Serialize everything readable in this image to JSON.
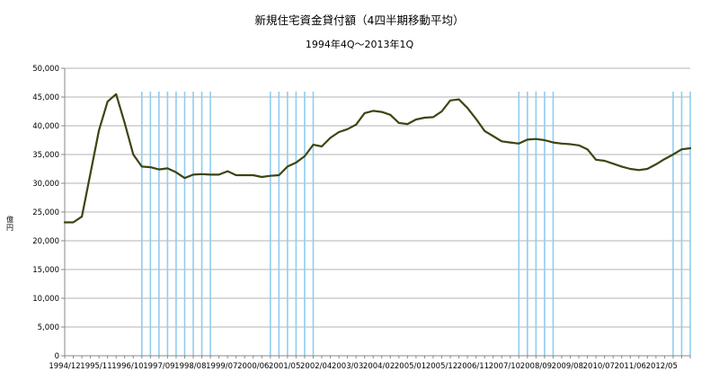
{
  "chart_data": {
    "type": "line",
    "title": "新規住宅資金貸付額（4四半期移動平均）",
    "subtitle": "1994年4Q〜2013年1Q",
    "xlabel": "",
    "ylabel": "億円",
    "ylim": [
      0,
      50000
    ],
    "yticks": [
      "0",
      "5,000",
      "10,000",
      "15,000",
      "20,000",
      "25,000",
      "30,000",
      "35,000",
      "40,000",
      "45,000",
      "50,000"
    ],
    "xtick_labels": [
      "1994/12",
      "1995/11",
      "1996/10",
      "1997/09",
      "1998/08",
      "1999/07",
      "2000/06",
      "2001/05",
      "2002/04",
      "2003/03",
      "2004/02",
      "2005/01",
      "2005/12",
      "2006/11",
      "2007/10",
      "2008/09",
      "2009/08",
      "2010/07",
      "2011/06",
      "2012/05"
    ],
    "grid": true,
    "legend": "none",
    "line_color": "#3d4512",
    "band_color": "#8fcdf0",
    "x": [
      "1994/12",
      "1995/03",
      "1995/06",
      "1995/09",
      "1995/12",
      "1996/03",
      "1996/06",
      "1996/09",
      "1996/12",
      "1997/03",
      "1997/06",
      "1997/09",
      "1997/12",
      "1998/03",
      "1998/06",
      "1998/09",
      "1998/12",
      "1999/03",
      "1999/06",
      "1999/09",
      "1999/12",
      "2000/03",
      "2000/06",
      "2000/09",
      "2000/12",
      "2001/03",
      "2001/06",
      "2001/09",
      "2001/12",
      "2002/03",
      "2002/06",
      "2002/09",
      "2002/12",
      "2003/03",
      "2003/06",
      "2003/09",
      "2003/12",
      "2004/03",
      "2004/06",
      "2004/09",
      "2004/12",
      "2005/03",
      "2005/06",
      "2005/09",
      "2005/12",
      "2006/03",
      "2006/06",
      "2006/09",
      "2006/12",
      "2007/03",
      "2007/06",
      "2007/09",
      "2007/12",
      "2008/03",
      "2008/06",
      "2008/09",
      "2008/12",
      "2009/03",
      "2009/06",
      "2009/09",
      "2009/12",
      "2010/03",
      "2010/06",
      "2010/09",
      "2010/12",
      "2011/03",
      "2011/06",
      "2011/09",
      "2011/12",
      "2012/03",
      "2012/06",
      "2012/09",
      "2012/12",
      "2013/03"
    ],
    "series": [
      {
        "values": [
          23200,
          23200,
          24200,
          31700,
          39200,
          44200,
          45500,
          40500,
          35000,
          32900,
          32800,
          32400,
          32600,
          31900,
          30900,
          31500,
          31600,
          31500,
          31500,
          32100,
          31400,
          31400,
          31400,
          31100,
          31300,
          31400,
          32900,
          33600,
          34700,
          36700,
          36400,
          37900,
          38900,
          39400,
          40200,
          42200,
          42600,
          42400,
          41900,
          40500,
          40300,
          41100,
          41400,
          41500,
          42500,
          44400,
          44600,
          43100,
          41200,
          39100,
          38200,
          37300,
          37100,
          36900,
          37600,
          37700,
          37500,
          37100,
          36900,
          36800,
          36600,
          35900,
          34100,
          33900,
          33400,
          32900,
          32500,
          32300,
          32500,
          33300,
          34200,
          35000,
          35900,
          36100
        ]
      }
    ],
    "bands": [
      [
        "1997/03",
        "1997/06",
        "1997/09",
        "1997/12",
        "1998/03",
        "1998/06",
        "1998/09",
        "1998/12",
        "1999/03"
      ],
      [
        "2000/12",
        "2001/03",
        "2001/06",
        "2001/09",
        "2001/12",
        "2002/03"
      ],
      [
        "2008/03",
        "2008/06",
        "2008/09",
        "2008/12",
        "2009/03"
      ],
      [
        "2012/09",
        "2012/12",
        "2013/03"
      ]
    ]
  }
}
